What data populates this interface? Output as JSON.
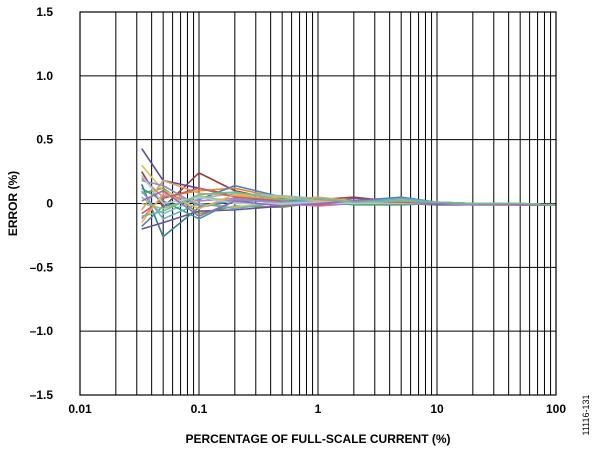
{
  "chart_data": {
    "type": "line",
    "title": "",
    "xlabel": "PERCENTAGE OF FULL-SCALE CURRENT (%)",
    "ylabel": "ERROR (%)",
    "x_scale": "log",
    "xlim": [
      0.01,
      100
    ],
    "ylim": [
      -1.5,
      1.5
    ],
    "grid": true,
    "x_tick_values": [
      0.01,
      0.1,
      1,
      10,
      100
    ],
    "x_tick_labels": [
      "0.01",
      "0.1",
      "1",
      "10",
      "100"
    ],
    "y_tick_values": [
      1.5,
      1.0,
      0.5,
      0,
      -0.5,
      -1.0,
      -1.5
    ],
    "y_tick_labels": [
      "1.5",
      "1.0",
      "0.5",
      "0",
      "–0.5",
      "–1.0",
      "–1.5"
    ],
    "figure_id": "11116-131",
    "x": [
      0.033,
      0.05,
      0.1,
      0.2,
      0.5,
      1,
      2,
      5,
      10,
      20,
      50,
      100
    ],
    "series": [
      {
        "color": "#5b4a9e",
        "values": [
          0.43,
          0.18,
          0.12,
          0.06,
          0.03,
          0.02,
          0.01,
          0.0,
          -0.01,
          -0.01,
          -0.01,
          -0.01
        ]
      },
      {
        "color": "#9b3d3d",
        "values": [
          0.25,
          -0.03,
          0.24,
          0.1,
          0.02,
          0.03,
          0.05,
          0.01,
          0.0,
          -0.01,
          -0.01,
          -0.01
        ]
      },
      {
        "color": "#2e7f8a",
        "values": [
          0.15,
          -0.26,
          -0.03,
          0.02,
          0.02,
          0.0,
          0.0,
          0.01,
          0.0,
          0.0,
          -0.01,
          -0.01
        ]
      },
      {
        "color": "#e28a3a",
        "values": [
          0.2,
          0.05,
          0.1,
          0.12,
          0.04,
          0.02,
          0.01,
          0.02,
          0.0,
          -0.01,
          -0.01,
          -0.01
        ]
      },
      {
        "color": "#4f7fbf",
        "values": [
          -0.18,
          -0.02,
          0.03,
          0.14,
          0.05,
          0.03,
          0.02,
          0.05,
          0.01,
          0.0,
          -0.01,
          -0.01
        ]
      },
      {
        "color": "#7aa63b",
        "values": [
          0.08,
          0.12,
          -0.08,
          -0.02,
          -0.03,
          0.01,
          0.02,
          0.01,
          0.0,
          0.0,
          0.0,
          -0.01
        ]
      },
      {
        "color": "#c07ab8",
        "values": [
          -0.12,
          0.06,
          0.02,
          0.04,
          0.0,
          -0.02,
          0.0,
          0.0,
          0.0,
          0.0,
          -0.01,
          -0.01
        ]
      },
      {
        "color": "#8fb8d8",
        "values": [
          0.05,
          -0.08,
          0.04,
          0.08,
          0.06,
          0.04,
          0.01,
          0.02,
          0.01,
          0.0,
          0.0,
          -0.01
        ]
      },
      {
        "color": "#d4c25a",
        "values": [
          0.3,
          0.1,
          0.0,
          -0.03,
          0.02,
          0.0,
          0.01,
          0.0,
          0.0,
          0.0,
          0.0,
          -0.01
        ]
      },
      {
        "color": "#6b4fa0",
        "values": [
          -0.2,
          -0.15,
          -0.06,
          -0.05,
          -0.02,
          0.0,
          0.04,
          0.02,
          0.01,
          0.0,
          -0.01,
          -0.01
        ]
      },
      {
        "color": "#3a9a8a",
        "values": [
          0.12,
          0.02,
          -0.12,
          0.02,
          0.04,
          0.02,
          -0.01,
          -0.01,
          0.0,
          0.0,
          0.0,
          -0.01
        ]
      },
      {
        "color": "#e2a26a",
        "values": [
          -0.05,
          0.18,
          0.08,
          0.06,
          0.03,
          0.05,
          0.02,
          0.03,
          0.01,
          0.0,
          -0.01,
          -0.01
        ]
      },
      {
        "color": "#a4c46a",
        "values": [
          0.0,
          -0.04,
          0.06,
          0.01,
          -0.01,
          0.01,
          0.0,
          0.01,
          0.0,
          0.0,
          0.0,
          -0.01
        ]
      },
      {
        "color": "#8a8fd0",
        "values": [
          0.18,
          0.14,
          -0.02,
          0.03,
          0.01,
          0.03,
          0.01,
          0.0,
          0.0,
          -0.01,
          -0.01,
          -0.01
        ]
      },
      {
        "color": "#c9605a",
        "values": [
          -0.08,
          0.04,
          0.12,
          0.05,
          0.02,
          -0.01,
          0.02,
          0.01,
          0.0,
          0.0,
          -0.01,
          -0.01
        ]
      },
      {
        "color": "#5fb0c8",
        "values": [
          0.1,
          -0.12,
          0.0,
          -0.04,
          0.01,
          0.02,
          0.01,
          0.04,
          0.01,
          0.0,
          0.0,
          -0.01
        ]
      },
      {
        "color": "#f0b34a",
        "values": [
          -0.15,
          0.08,
          -0.04,
          0.07,
          0.05,
          0.02,
          0.0,
          0.0,
          0.0,
          0.0,
          -0.01,
          -0.01
        ]
      },
      {
        "color": "#b0c8e8",
        "values": [
          0.22,
          0.0,
          0.05,
          0.0,
          0.0,
          0.01,
          0.0,
          0.01,
          0.0,
          0.0,
          0.0,
          -0.01
        ]
      },
      {
        "color": "#9a6ac0",
        "values": [
          0.02,
          0.1,
          -0.1,
          0.02,
          -0.02,
          0.0,
          0.02,
          0.01,
          0.0,
          0.0,
          -0.01,
          -0.01
        ]
      },
      {
        "color": "#6fbf8a",
        "values": [
          -0.1,
          -0.06,
          0.07,
          0.09,
          0.03,
          0.04,
          0.01,
          0.02,
          0.01,
          0.0,
          0.0,
          -0.01
        ]
      }
    ]
  }
}
